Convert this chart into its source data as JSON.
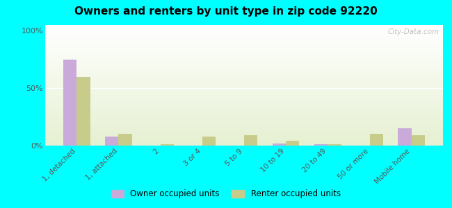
{
  "title": "Owners and renters by unit type in zip code 92220",
  "categories": [
    "1, detached",
    "1, attached",
    "2",
    "3 or 4",
    "5 to 9",
    "10 to 19",
    "20 to 49",
    "50 or more",
    "Mobile home"
  ],
  "owner_values": [
    75,
    8,
    0,
    0,
    0,
    2,
    1,
    0,
    15
  ],
  "renter_values": [
    60,
    10,
    1,
    8,
    9,
    4,
    1,
    10,
    9
  ],
  "owner_color": "#c9aad8",
  "renter_color": "#c8cc8a",
  "background_color": "#00ffff",
  "ylabel_ticks": [
    "0%",
    "50%",
    "100%"
  ],
  "ytick_values": [
    0,
    50,
    100
  ],
  "ylim": [
    0,
    105
  ],
  "watermark": "City-Data.com",
  "legend_owner": "Owner occupied units",
  "legend_renter": "Renter occupied units",
  "bar_width": 0.32
}
